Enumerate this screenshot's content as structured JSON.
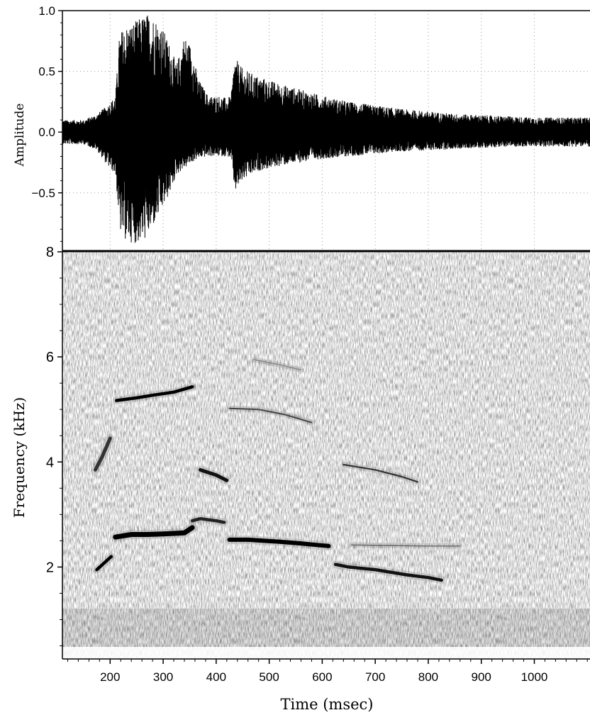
{
  "chart_data": [
    {
      "type": "line",
      "panel": "waveform",
      "ylabel": "Amplitude",
      "xlim": [
        110,
        1105
      ],
      "ylim": [
        -0.98,
        1.0
      ],
      "y_ticks": [
        1.0,
        0.5,
        0.0,
        -0.5
      ],
      "y_tick_labels": [
        "1.0",
        "0.5",
        "0.0",
        "−0.5"
      ],
      "grid": true,
      "color": "#000000",
      "envelope": {
        "x": [
          110,
          150,
          175,
          195,
          210,
          218,
          230,
          250,
          268,
          285,
          300,
          315,
          325,
          340,
          355,
          365,
          385,
          405,
          420,
          428,
          435,
          450,
          480,
          520,
          560,
          600,
          650,
          700,
          750,
          800,
          850,
          900,
          950,
          1000,
          1050,
          1105
        ],
        "top": [
          0.1,
          0.1,
          0.15,
          0.22,
          0.3,
          0.82,
          0.88,
          0.92,
          0.98,
          0.95,
          0.85,
          0.7,
          0.55,
          0.8,
          0.7,
          0.45,
          0.3,
          0.3,
          0.28,
          0.3,
          0.62,
          0.52,
          0.46,
          0.4,
          0.35,
          0.3,
          0.25,
          0.22,
          0.19,
          0.17,
          0.15,
          0.14,
          0.13,
          0.12,
          0.12,
          0.12
        ],
        "bottom": [
          -0.1,
          -0.1,
          -0.15,
          -0.28,
          -0.35,
          -0.82,
          -0.9,
          -0.92,
          -0.88,
          -0.75,
          -0.62,
          -0.48,
          -0.35,
          -0.3,
          -0.25,
          -0.22,
          -0.2,
          -0.2,
          -0.2,
          -0.22,
          -0.5,
          -0.4,
          -0.32,
          -0.28,
          -0.25,
          -0.22,
          -0.2,
          -0.18,
          -0.16,
          -0.15,
          -0.14,
          -0.13,
          -0.12,
          -0.12,
          -0.12,
          -0.12
        ]
      }
    },
    {
      "type": "heatmap",
      "panel": "spectrogram",
      "colormap": "grayscale (darker = stronger)",
      "xlabel": "Time (msec)",
      "ylabel": "Frequency (kHz)",
      "xlim": [
        110,
        1105
      ],
      "ylim": [
        0.25,
        8.0
      ],
      "x_ticks": [
        200,
        300,
        400,
        500,
        600,
        700,
        800,
        900,
        1000
      ],
      "y_ticks": [
        2,
        4,
        6,
        8
      ],
      "grid": false,
      "traces": [
        {
          "x": [
            175,
            202
          ],
          "y": [
            1.95,
            2.2
          ],
          "w": 4.5,
          "shade": "#000000"
        },
        {
          "x": [
            210,
            240,
            270,
            300,
            340,
            355
          ],
          "y": [
            2.57,
            2.62,
            2.62,
            2.63,
            2.65,
            2.75
          ],
          "w": 7,
          "shade": "#000000"
        },
        {
          "x": [
            355,
            370,
            400,
            415
          ],
          "y": [
            2.88,
            2.92,
            2.88,
            2.85
          ],
          "w": 4.5,
          "shade": "#222222"
        },
        {
          "x": [
            425,
            460,
            520,
            560,
            590,
            612
          ],
          "y": [
            2.52,
            2.52,
            2.48,
            2.45,
            2.42,
            2.4
          ],
          "w": 6,
          "shade": "#000000"
        },
        {
          "x": [
            625,
            650,
            700,
            760,
            800,
            825
          ],
          "y": [
            2.05,
            2.0,
            1.95,
            1.85,
            1.8,
            1.75
          ],
          "w": 4.5,
          "shade": "#111111"
        },
        {
          "x": [
            172,
            185,
            200
          ],
          "y": [
            3.85,
            4.1,
            4.45
          ],
          "w": 5,
          "shade": "#333333"
        },
        {
          "x": [
            212,
            250,
            280,
            320,
            355
          ],
          "y": [
            5.17,
            5.22,
            5.27,
            5.33,
            5.43
          ],
          "w": 4.5,
          "shade": "#000000"
        },
        {
          "x": [
            370,
            400,
            420
          ],
          "y": [
            3.85,
            3.75,
            3.65
          ],
          "w": 5,
          "shade": "#111111"
        },
        {
          "x": [
            425,
            480,
            530,
            580
          ],
          "y": [
            5.02,
            5.0,
            4.9,
            4.75
          ],
          "w": 2,
          "shade": "#444444"
        },
        {
          "x": [
            640,
            700,
            750,
            780
          ],
          "y": [
            3.95,
            3.85,
            3.72,
            3.62
          ],
          "w": 2.2,
          "shade": "#333333"
        },
        {
          "x": [
            470,
            520,
            560
          ],
          "y": [
            5.95,
            5.85,
            5.75
          ],
          "w": 1.5,
          "shade": "#888888"
        },
        {
          "x": [
            655,
            720,
            800,
            860
          ],
          "y": [
            2.42,
            2.41,
            2.4,
            2.4
          ],
          "w": 1.4,
          "shade": "#666666"
        }
      ]
    }
  ]
}
